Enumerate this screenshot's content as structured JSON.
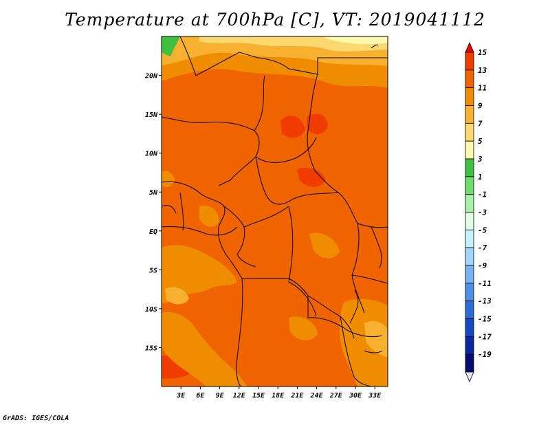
{
  "title": "Temperature at 700hPa [C], VT: 2019041112",
  "credit": "GrADS: IGES/COLA",
  "map": {
    "lat_labels": [
      "20N",
      "15N",
      "10N",
      "5N",
      "EQ",
      "5S",
      "10S",
      "15S"
    ],
    "lon_labels": [
      "3E",
      "6E",
      "9E",
      "12E",
      "15E",
      "18E",
      "21E",
      "24E",
      "27E",
      "30E",
      "33E"
    ],
    "lat_range": [
      -20,
      25
    ],
    "lon_range": [
      0,
      35
    ]
  },
  "colorbar": {
    "labels": [
      "15",
      "13",
      "11",
      "9",
      "7",
      "5",
      "3",
      "1",
      "-1",
      "-3",
      "-5",
      "-7",
      "-9",
      "-11",
      "-13",
      "-15",
      "-17",
      "-19"
    ],
    "colors": [
      "#f00000",
      "#f03c00",
      "#f06400",
      "#f08c00",
      "#f8b030",
      "#fcd870",
      "#fcf8b0",
      "#40c040",
      "#6cdc6c",
      "#a8f0a8",
      "#e0fce0",
      "#c4f0fc",
      "#a0d4f8",
      "#78b4f0",
      "#4c90e8",
      "#2c6cd8",
      "#1448c4",
      "#0828a0",
      "#040c70",
      "#e4e4fc"
    ]
  }
}
